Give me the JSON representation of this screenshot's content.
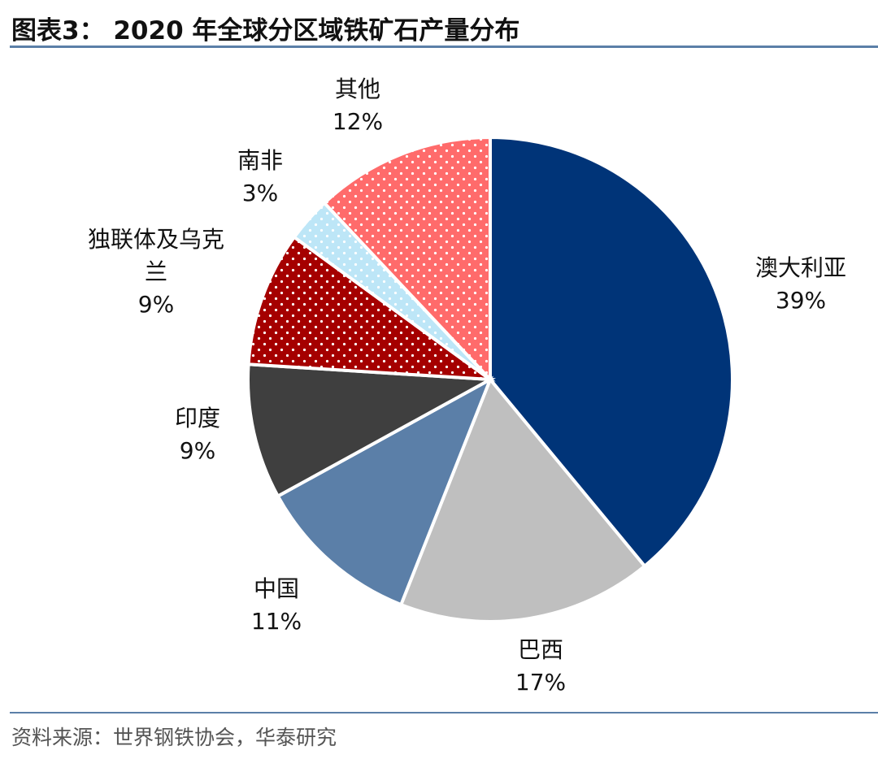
{
  "chart_data": {
    "type": "pie",
    "title": "图表3： 2020 年全球分区域铁矿石产量分布",
    "source": "资料来源：世界钢铁协会，华泰研究",
    "categories": [
      "澳大利亚",
      "巴西",
      "中国",
      "印度",
      "独联体及乌克兰",
      "南非",
      "其他"
    ],
    "values": [
      39,
      17,
      11,
      9,
      9,
      3,
      12
    ],
    "value_labels": [
      "39%",
      "17%",
      "11%",
      "9%",
      "9%",
      "3%",
      "12%"
    ],
    "colors": [
      "#003478",
      "#bfbfbf",
      "#5b7fa8",
      "#3f3f3f",
      "#a50000",
      "#bde6f7",
      "#ff6b6b"
    ],
    "dotted": [
      false,
      false,
      false,
      false,
      true,
      true,
      true
    ]
  }
}
